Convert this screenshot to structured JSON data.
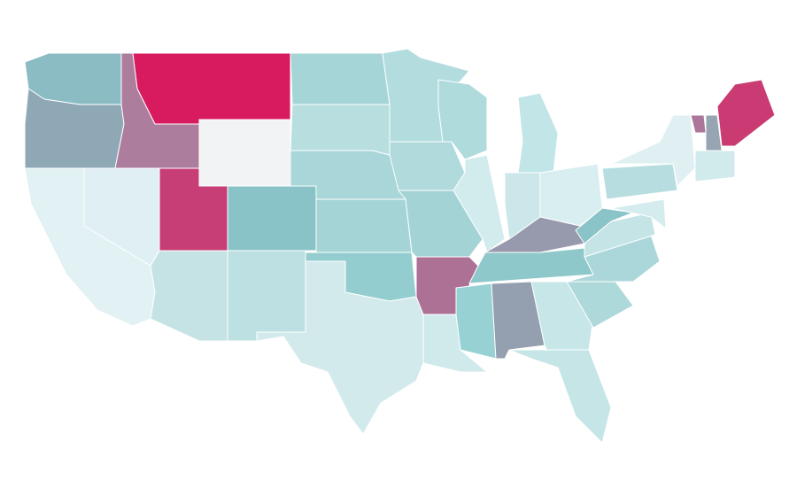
{
  "map": {
    "regions": [
      {
        "color": "#8bbcc4"
      },
      {
        "color": "#8fa8b5"
      },
      {
        "color": "#e2f1f3"
      },
      {
        "color": "#e0eff4"
      },
      {
        "color": "#ad7d9d"
      },
      {
        "color": "#d81b5f"
      },
      {
        "color": "#f2f3f5"
      },
      {
        "color": "#c73e76"
      },
      {
        "color": "#8ac3c7"
      },
      {
        "color": "#c5e3e5"
      },
      {
        "color": "#bde1e2"
      },
      {
        "color": "#a6d5d7"
      },
      {
        "color": "#b8dee0"
      },
      {
        "color": "#a9d6d9"
      },
      {
        "color": "#a4d4d6"
      },
      {
        "color": "#94cdcf"
      },
      {
        "color": "#d3eaec"
      },
      {
        "color": "#b2dcde"
      },
      {
        "color": "#b0dadc"
      },
      {
        "color": "#a4d3d6"
      },
      {
        "color": "#ad7196"
      },
      {
        "color": "#d0eaec"
      },
      {
        "color": "#afdbdd"
      },
      {
        "color": "#d2ebed"
      },
      {
        "color": "#c2e5e8"
      },
      {
        "color": "#cbe7e9"
      },
      {
        "color": "#d9eef0"
      },
      {
        "color": "#9799ad"
      },
      {
        "color": "#8fc8cb"
      },
      {
        "color": "#98d1d3"
      },
      {
        "color": "#949fb0"
      },
      {
        "color": "#c7e6e8"
      },
      {
        "color": "#c5e5e7"
      },
      {
        "color": "#aed9db"
      },
      {
        "color": "#acd7da"
      },
      {
        "color": "#c5e4e6"
      },
      {
        "color": "#8ac3c8"
      },
      {
        "color": "#b7dde0"
      },
      {
        "color": "#e0f0f2"
      },
      {
        "color": "#d5ecee"
      },
      {
        "color": "#ab7699"
      },
      {
        "color": "#96a5b1"
      },
      {
        "color": "#c93b72"
      },
      {
        "color": "#d1eaec"
      }
    ]
  }
}
